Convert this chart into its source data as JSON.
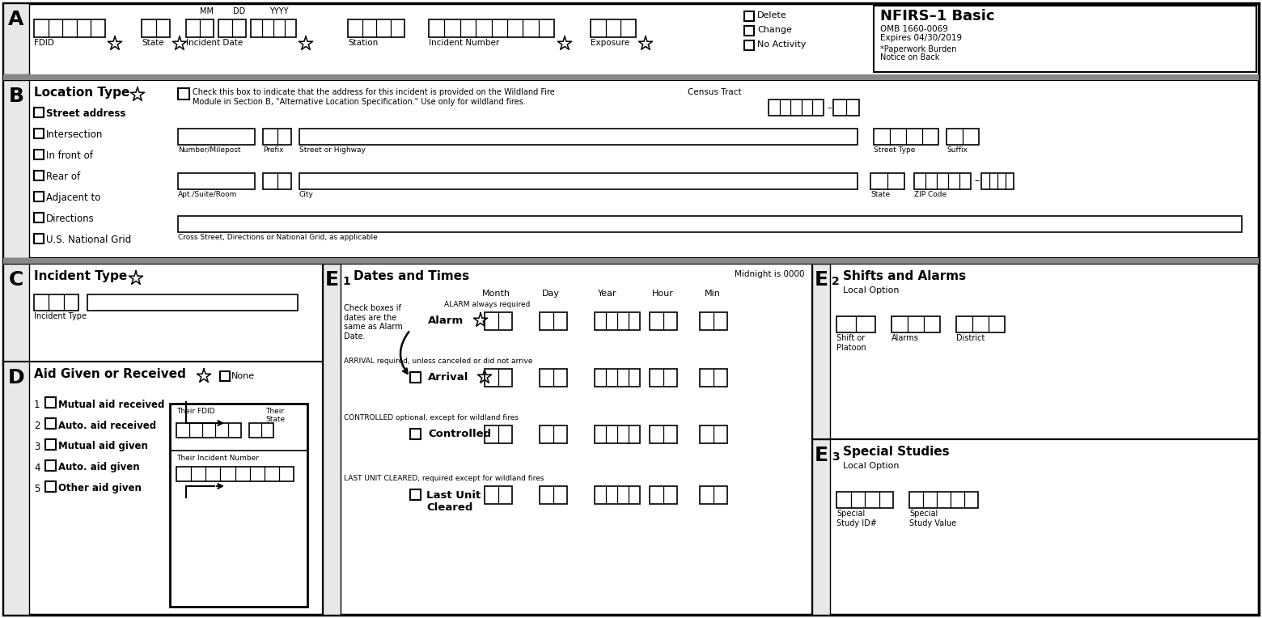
{
  "bg_color": "#ffffff",
  "title": "NFIRS–1 Basic",
  "subtitle1": "OMB 1660-0069",
  "subtitle2": "Expires 04/30/2019",
  "subtitle3": "*Paperwork Burden",
  "subtitle4": "Notice on Back",
  "gray_bar": "#888888",
  "section_fill": "#f0f0f0"
}
